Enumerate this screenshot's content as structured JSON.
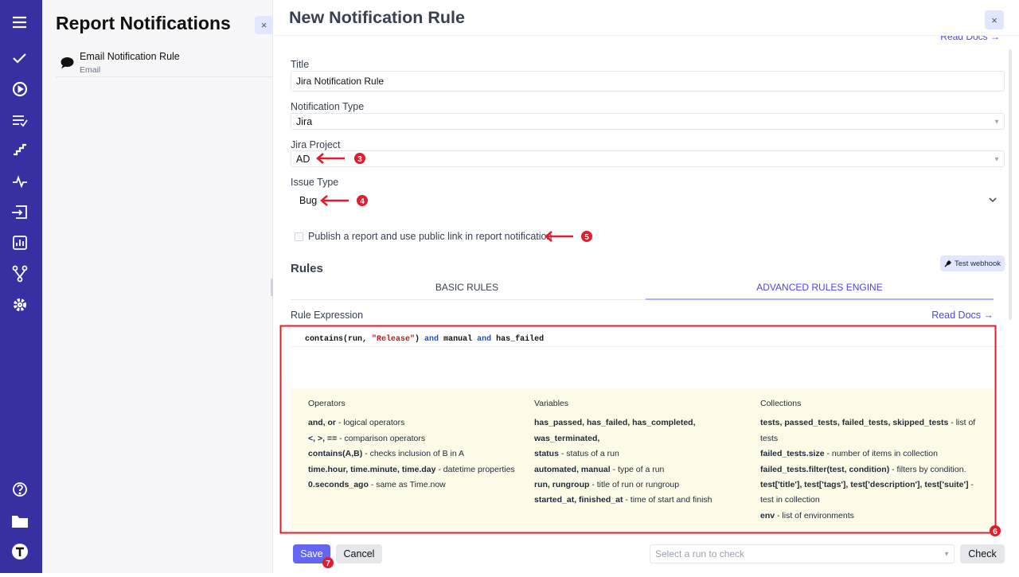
{
  "panel": {
    "title": "Report Notifications",
    "close": "×",
    "items": [
      {
        "name": "Email Notification Rule",
        "type": "Email"
      }
    ]
  },
  "form": {
    "title": "New Notification Rule",
    "close": "×",
    "read_docs_top": "Read Docs →",
    "fields": [
      {
        "label": "Title",
        "value": "Jira Notification Rule"
      },
      {
        "label": "Notification Type",
        "value": "Jira"
      },
      {
        "label": "Jira Project",
        "value": "AD"
      },
      {
        "label": "Issue Type",
        "value": "Bug"
      }
    ],
    "checkbox": "Publish a report and use public link in report notification",
    "rules": {
      "heading": "Rules",
      "test_webhook": "Test webhook",
      "tabs": [
        "BASIC RULES",
        "ADVANCED RULES ENGINE"
      ],
      "expression_label": "Rule Expression",
      "read_docs": "Read Docs →",
      "code": [
        "contains(run, ",
        "\"Release\"",
        ") ",
        "and",
        " manual ",
        "and",
        " has_failed"
      ],
      "help": [
        {
          "heading": "Operators",
          "items": [
            {
              "term": "and, or",
              "desc": "- logical operators"
            },
            {
              "term": "<, >, ==",
              "desc": "- comparison operators"
            },
            {
              "term": "contains(A,B)",
              "desc": "- checks inclusion of B in A"
            },
            {
              "term": "time.hour, time.minute, time.day",
              "desc": "- datetime properties"
            },
            {
              "term": "0.seconds_ago",
              "desc": "- same as Time.now"
            }
          ]
        },
        {
          "heading": "Variables",
          "items": [
            {
              "term": "has_passed, has_failed, has_completed, was_terminated,"
            },
            {
              "term": "status",
              "desc": "- status of a run"
            },
            {
              "term": "automated, manual",
              "desc": "- type of a run"
            },
            {
              "term": "run, rungroup",
              "desc": "- title of run or rungroup"
            },
            {
              "term": "started_at, finished_at",
              "desc": "- time of start and finish"
            }
          ]
        },
        {
          "heading": "Collections",
          "items": [
            {
              "term": "tests, passed_tests, failed_tests, skipped_tests",
              "desc": "- list of tests"
            },
            {
              "term": "failed_tests.size",
              "desc": "- number of items in collection"
            },
            {
              "term": "failed_tests.filter(test, condition)",
              "desc": "- filters by condition."
            },
            {
              "term": "test['title'], test['tags'], test['description'], test['suite']",
              "desc": "- test in collection"
            },
            {
              "term": "env",
              "desc": "- list of environments"
            }
          ]
        }
      ]
    },
    "footer": {
      "save": "Save",
      "cancel": "Cancel",
      "run_select": "Select a run to check",
      "check": "Check"
    }
  },
  "annotations": [
    "3",
    "4",
    "5",
    "6",
    "7"
  ]
}
